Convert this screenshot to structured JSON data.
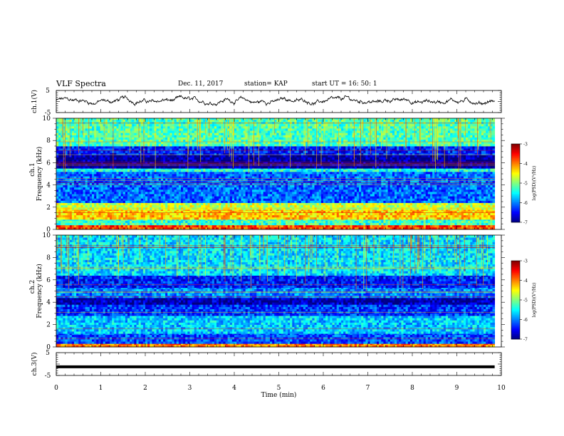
{
  "header": {
    "title": "VLF Spectra",
    "date": "Dec. 11, 2017",
    "station": "station= KAP",
    "start_time": "start  UT =   16: 50: 1"
  },
  "chart_data": [
    {
      "type": "line",
      "id": "ch1-waveform",
      "ylabel": "ch.1(V)",
      "xlim": [
        0,
        10
      ],
      "ylim": [
        -5,
        5
      ],
      "yticks": [
        "5",
        "-5"
      ],
      "series": [
        {
          "name": "",
          "x_range": [
            0,
            9.85
          ],
          "mean": 0.3,
          "amplitude": 1.6
        }
      ]
    },
    {
      "type": "heatmap",
      "id": "ch1-spectrogram",
      "ylabel_top": "ch.1",
      "ylabel": "Frequency (kHz)",
      "xlim": [
        0,
        10
      ],
      "ylim": [
        0,
        10
      ],
      "yticks": [
        "0",
        "2",
        "4",
        "6",
        "8",
        "10"
      ],
      "data_x_end": 9.85,
      "colorbar": {
        "label": "log(PSD)(V²/Hz)",
        "range": [
          -7,
          -3
        ],
        "ticks": [
          "-3",
          "-4",
          "-5",
          "-6",
          "-7"
        ]
      },
      "bands": [
        {
          "f": [
            0,
            0.4
          ],
          "level": -3.8
        },
        {
          "f": [
            0.4,
            0.9
          ],
          "level": -5.3
        },
        {
          "f": [
            0.9,
            1.8
          ],
          "level": -4.3
        },
        {
          "f": [
            1.8,
            2.4
          ],
          "level": -4.7
        },
        {
          "f": [
            2.4,
            5.2
          ],
          "level": -6.1
        },
        {
          "f": [
            5.2,
            5.5
          ],
          "level": -5.4
        },
        {
          "f": [
            5.5,
            6.7
          ],
          "level": -6.9
        },
        {
          "f": [
            6.7,
            7.5
          ],
          "level": -6.4
        },
        {
          "f": [
            7.5,
            10
          ],
          "level": -5.2
        }
      ]
    },
    {
      "type": "heatmap",
      "id": "ch2-spectrogram",
      "ylabel_top": "ch.2",
      "ylabel": "Frequency (kHz)",
      "xlim": [
        0,
        10
      ],
      "ylim": [
        0,
        10
      ],
      "yticks": [
        "0",
        "2",
        "4",
        "6",
        "8",
        "10"
      ],
      "data_x_end": 9.85,
      "colorbar": {
        "label": "log(PSD)(V²/Hz)",
        "range": [
          -7,
          -3
        ],
        "ticks": [
          "-3",
          "-4",
          "-5",
          "-6",
          "-7"
        ]
      },
      "bands": [
        {
          "f": [
            0,
            0.3
          ],
          "level": -4.0
        },
        {
          "f": [
            0.3,
            1.2
          ],
          "level": -6.2
        },
        {
          "f": [
            1.2,
            2.8
          ],
          "level": -5.7
        },
        {
          "f": [
            2.8,
            3.8
          ],
          "level": -6.3
        },
        {
          "f": [
            3.8,
            4.4
          ],
          "level": -6.8
        },
        {
          "f": [
            4.4,
            5.3
          ],
          "level": -6.0
        },
        {
          "f": [
            5.3,
            6.4
          ],
          "level": -6.4
        },
        {
          "f": [
            6.4,
            10
          ],
          "level": -5.6
        }
      ]
    },
    {
      "type": "line",
      "id": "ch3-waveform",
      "ylabel": "ch.3(V)",
      "xlabel": "Time  (min)",
      "xlim": [
        0,
        10
      ],
      "ylim": [
        -5,
        5
      ],
      "xticks": [
        "0",
        "1",
        "2",
        "3",
        "4",
        "5",
        "6",
        "7",
        "8",
        "9",
        "10"
      ],
      "yticks": [
        "5",
        "-5"
      ],
      "series": [
        {
          "name": "",
          "x_range": [
            0,
            9.85
          ],
          "value": -1.2
        }
      ]
    }
  ]
}
